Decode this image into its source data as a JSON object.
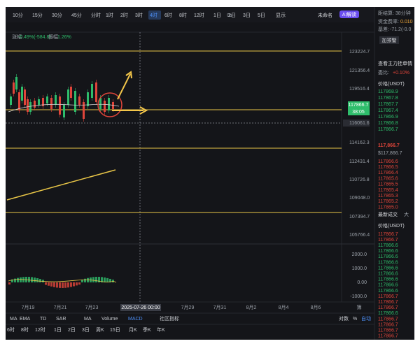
{
  "toolbar": {
    "intervals": [
      "10分",
      "15分",
      "30分",
      "45分",
      "分时",
      "1时",
      "2时",
      "3时",
      "4时",
      "6时",
      "8时",
      "12时",
      "1日",
      "2日",
      "3日",
      "5日"
    ],
    "selected": 8,
    "delay": "0s",
    "display": "显示",
    "layout_name": "未命名",
    "ai": "AI解读"
  },
  "info": {
    "change_label": "涨幅",
    "change": "-0.49%(-584.8)",
    "amp_label": "振幅",
    "amp": "1.26%"
  },
  "price_axis": [
    "123224.7",
    "121356.4",
    "119516.4",
    "116061.6",
    "114162.3",
    "112431.4",
    "110726.8",
    "109048.0",
    "107394.7",
    "105766.4"
  ],
  "current_price": "117866.7",
  "countdown": "38:05",
  "macd_axis": [
    "2000.0",
    "1000.0",
    "0.00",
    "-1000.0"
  ],
  "time_axis": [
    "7月19",
    "7月21",
    "7月23",
    "2025-07-26 00:00",
    "7月29",
    "7月31",
    "8月2",
    "8月4",
    "8月6"
  ],
  "time_axis_end": "簿",
  "indicators": [
    "MA",
    "EMA",
    "TD",
    "SAR",
    "MA",
    "Volume",
    "MACD",
    "社区指标"
  ],
  "scale_options": [
    "对数",
    "%",
    "自动"
  ],
  "bottom_intervals": [
    "6时",
    "8时",
    "12时",
    "1日",
    "2日",
    "3日",
    "周K",
    "15日",
    "月K",
    "季K",
    "年K"
  ],
  "panel": {
    "settle": "距结算: 38分钟",
    "funding_label": "资金费率:",
    "funding": "0.010",
    "basis_label": "基差:",
    "basis": "-71.2(-0.0",
    "alert": "加预警",
    "depth_link": "查看主力挂单情",
    "ratio_label": "委比:",
    "ratio": "+0.10%",
    "price_header": "价格(USDT)",
    "asks": [
      "117868.9",
      "117867.8",
      "117867.7",
      "117867.4",
      "117866.9",
      "117866.8",
      "117866.7"
    ],
    "last": "117,866.7",
    "last_usd": "$117,866.7",
    "bids": [
      "117866.6",
      "117866.5",
      "117866.4",
      "117865.6",
      "117865.5",
      "117865.4",
      "117865.3",
      "117865.2",
      "117865.0"
    ],
    "trades_title": "最新成交",
    "trades_tab": "大",
    "trades_header": "价格(USDT)",
    "trades": [
      {
        "price": "117866.7",
        "color": "#e0453a"
      },
      {
        "price": "117866.7",
        "color": "#e0453a"
      },
      {
        "price": "117866.6",
        "color": "#2ebd6b"
      },
      {
        "price": "117866.6",
        "color": "#2ebd6b"
      },
      {
        "price": "117866.6",
        "color": "#2ebd6b"
      },
      {
        "price": "117866.6",
        "color": "#2ebd6b"
      },
      {
        "price": "117866.6",
        "color": "#2ebd6b"
      },
      {
        "price": "117866.6",
        "color": "#2ebd6b"
      },
      {
        "price": "117866.6",
        "color": "#2ebd6b"
      },
      {
        "price": "117866.6",
        "color": "#2ebd6b"
      },
      {
        "price": "117866.6",
        "color": "#2ebd6b"
      },
      {
        "price": "117866.7",
        "color": "#e0453a"
      },
      {
        "price": "117866.7",
        "color": "#e0453a"
      },
      {
        "price": "117866.7",
        "color": "#e0453a"
      },
      {
        "price": "117866.6",
        "color": "#2ebd6b"
      },
      {
        "price": "117866.7",
        "color": "#e0453a"
      },
      {
        "price": "117866.7",
        "color": "#e0453a"
      },
      {
        "price": "117866.7",
        "color": "#e0453a"
      },
      {
        "price": "117866.7",
        "color": "#e0453a"
      }
    ]
  }
}
